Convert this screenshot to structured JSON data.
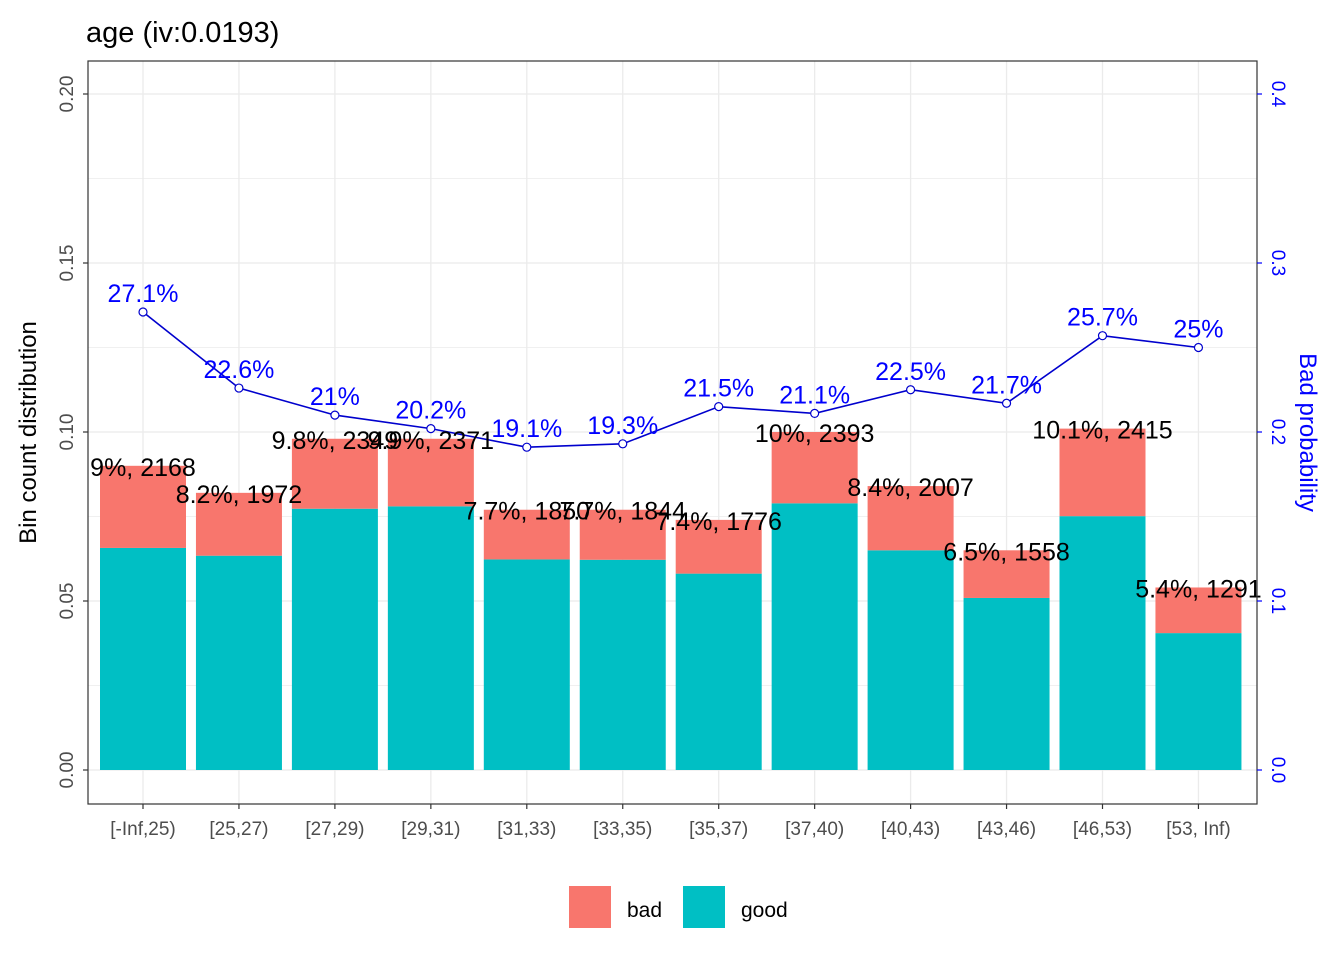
{
  "chart_data": {
    "type": "bar",
    "title": "age  (iv:0.0193)",
    "ylabel": "Bin count distribution",
    "y2label": "Bad probability",
    "ylim": [
      0,
      0.2
    ],
    "y2lim": [
      0,
      0.4
    ],
    "y_ticks": [
      "0.00",
      "0.05",
      "0.10",
      "0.15",
      "0.20"
    ],
    "y2_ticks": [
      "0.0",
      "0.1",
      "0.2",
      "0.3",
      "0.4"
    ],
    "categories": [
      "[-Inf,25)",
      "[25,27)",
      "[27,29)",
      "[29,31)",
      "[31,33)",
      "[33,35)",
      "[35,37)",
      "[37,40)",
      "[40,43)",
      "[43,46)",
      "[46,53)",
      "[53, Inf)"
    ],
    "stacked": true,
    "series": [
      {
        "name": "bad",
        "color": "#f8766d",
        "values": [
          0.0243,
          0.0186,
          0.0207,
          0.02,
          0.0147,
          0.0148,
          0.0159,
          0.0211,
          0.019,
          0.0141,
          0.0259,
          0.0135
        ]
      },
      {
        "name": "good",
        "color": "#00bfc4",
        "values": [
          0.0657,
          0.0634,
          0.0773,
          0.078,
          0.0623,
          0.0622,
          0.0581,
          0.0789,
          0.065,
          0.0509,
          0.0751,
          0.0405
        ]
      }
    ],
    "bar_labels": [
      "9%, 2168",
      "8.2%, 1972",
      "9.8%, 2349",
      "9.9%, 2371",
      "7.7%, 1850",
      "7.7%, 1844",
      "7.4%, 1776",
      "10%, 2393",
      "8.4%, 2007",
      "6.5%, 1558",
      "10.1%, 2415",
      "5.4%, 1291"
    ],
    "line": {
      "name": "Bad probability",
      "color": "#0000cd",
      "axis": "right",
      "values": [
        0.271,
        0.226,
        0.21,
        0.202,
        0.191,
        0.193,
        0.215,
        0.211,
        0.225,
        0.217,
        0.257,
        0.25
      ],
      "labels": [
        "27.1%",
        "22.6%",
        "21%",
        "20.2%",
        "19.1%",
        "19.3%",
        "21.5%",
        "21.1%",
        "22.5%",
        "21.7%",
        "25.7%",
        "25%"
      ]
    },
    "legend": {
      "position": "bottom",
      "items": [
        "bad",
        "good"
      ]
    },
    "grid": true
  }
}
